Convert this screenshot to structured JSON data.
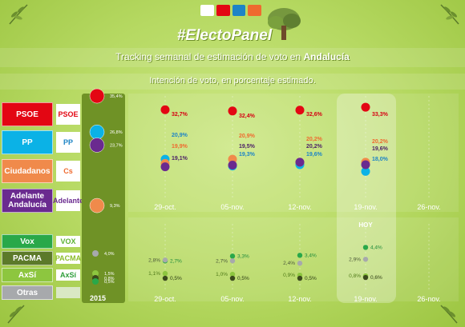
{
  "header": {
    "hashtag": "#ElectoPanel",
    "title_prefix": "Tracking semanal de estimación de voto en ",
    "title_region": "Andalucía",
    "subtitle": "Intención de voto, en porcentaje estimado."
  },
  "parties_main": [
    {
      "label": "PSOE",
      "color": "#e30613",
      "logo": "PSOE",
      "logo_color": "#e30613"
    },
    {
      "label": "PP",
      "color": "#0bb2e6",
      "logo": "PP",
      "logo_color": "#1d84c6"
    },
    {
      "label": "Ciudadanos",
      "color": "#f08a4b",
      "logo": "Cs",
      "logo_color": "#ef6a2f"
    },
    {
      "label": "Adelante Andalucía",
      "color": "#6a2a8f",
      "logo": "Adelante",
      "logo_color": "#6a2a8f"
    }
  ],
  "parties_minor": [
    {
      "label": "Vox",
      "color": "#29a849",
      "logo": "VOX",
      "logo_color": "#5bb132"
    },
    {
      "label": "PACMA",
      "color": "#5c7a2a",
      "logo": "PACMA",
      "logo_color": "#8cbd2b"
    },
    {
      "label": "AxSí",
      "color": "#8dc63f",
      "logo": "AxSí",
      "logo_color": "#2f9e3a"
    },
    {
      "label": "Otras",
      "color": "#a7a9ac",
      "logo": "",
      "logo_color": "#888888"
    }
  ],
  "chart_data": {
    "type": "scatter",
    "baseline_label": "2015",
    "today_label": "HOY",
    "categories": [
      "29-oct.",
      "05-nov.",
      "12-nov.",
      "19-nov.",
      "26-nov."
    ],
    "baseline": {
      "PSOE": "35,4%",
      "PP": "26,8%",
      "Adelante": "23,7%",
      "Cs": "9,3%",
      "Otras": "4,0%",
      "AxSi": "1,5%",
      "PACMA": "0,8%",
      "Vox": "0,5%"
    },
    "baseline_values": {
      "PSOE": 35.4,
      "PP": 26.8,
      "Adelante": 23.7,
      "Cs": 9.3,
      "Otras": 4.0,
      "AxSi": 1.5,
      "PACMA": 0.8,
      "Vox": 0.5
    },
    "series_main": [
      {
        "name": "PSOE",
        "color": "#e30613",
        "values": [
          32.7,
          32.4,
          32.6,
          33.3
        ],
        "labels": [
          "32,7%",
          "32,4%",
          "32,6%",
          "33,3%"
        ]
      },
      {
        "name": "PP",
        "color": "#0bb2e6",
        "values": [
          20.9,
          19.3,
          19.6,
          18.0
        ],
        "labels": [
          "20,9%",
          "19,3%",
          "19,6%",
          "18,0%"
        ]
      },
      {
        "name": "Cs",
        "color": "#f08a4b",
        "values": [
          19.9,
          20.9,
          20.2,
          20.2
        ],
        "labels": [
          "19,9%",
          "20,9%",
          "20,2%",
          "20,2%"
        ]
      },
      {
        "name": "Adelante",
        "color": "#6a2a8f",
        "values": [
          19.1,
          19.5,
          20.2,
          19.6
        ],
        "labels": [
          "19,1%",
          "19,5%",
          "20,2%",
          "19,6%"
        ]
      }
    ],
    "series_minor": [
      {
        "name": "Vox",
        "color": "#29a849",
        "values": [
          2.7,
          3.3,
          3.4,
          4.4
        ],
        "labels": [
          "2,7%",
          "3,3%",
          "3,4%",
          "4,4%"
        ]
      },
      {
        "name": "Otras",
        "color": "#a7a9ac",
        "values": [
          2.8,
          2.7,
          2.4,
          2.9
        ],
        "labels": [
          "2,8%",
          "2,7%",
          "2,4%",
          "2,9%"
        ]
      },
      {
        "name": "AxSi",
        "color": "#8dc63f",
        "values": [
          1.1,
          1.0,
          0.9,
          0.8
        ],
        "labels": [
          "1,1%",
          "1,0%",
          "0,9%",
          "0,8%"
        ]
      },
      {
        "name": "PACMA",
        "color": "#3b4a1c",
        "values": [
          0.5,
          0.5,
          0.5,
          0.6
        ],
        "labels": [
          "0,5%",
          "0,5%",
          "0,5%",
          "0,6%"
        ]
      }
    ]
  }
}
